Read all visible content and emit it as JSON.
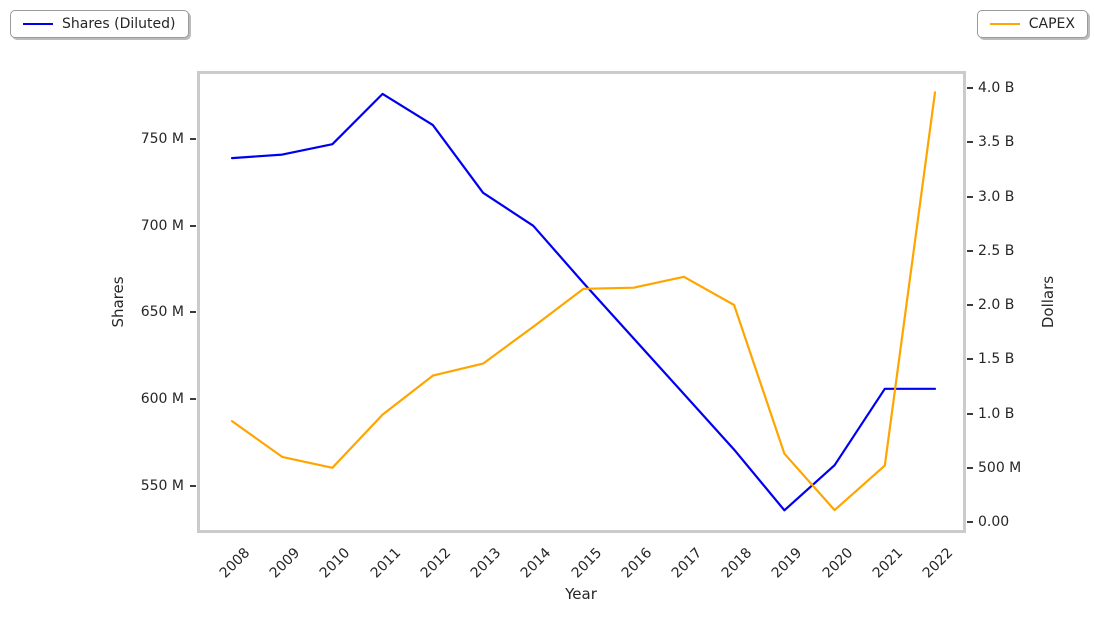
{
  "legend_left": {
    "label": "Shares (Diluted)"
  },
  "legend_right": {
    "label": "CAPEX"
  },
  "chart_data": {
    "type": "line",
    "title": "",
    "xlabel": "Year",
    "x_categories": [
      "2008",
      "2009",
      "2010",
      "2011",
      "2012",
      "2013",
      "2014",
      "2015",
      "2016",
      "2017",
      "2018",
      "2019",
      "2020",
      "2021",
      "2022"
    ],
    "y_left": {
      "label": "Shares",
      "unit": "millions of shares",
      "tick_labels": [
        "550 M",
        "600 M",
        "650 M",
        "700 M",
        "750 M"
      ],
      "tick_values": [
        550,
        600,
        650,
        700,
        750
      ],
      "axis_range": [
        522.9,
        789.2
      ]
    },
    "y_right": {
      "label": "Dollars",
      "unit": "billions of dollars",
      "tick_labels": [
        "0.00",
        "500 M",
        "1.0 B",
        "1.5 B",
        "2.0 B",
        "2.5 B",
        "3.0 B",
        "3.5 B",
        "4.0 B"
      ],
      "tick_values": [
        0,
        0.5,
        1.0,
        1.5,
        2.0,
        2.5,
        3.0,
        3.5,
        4.0
      ],
      "axis_range": [
        -0.101,
        4.157
      ]
    },
    "series": [
      {
        "name": "Shares (Diluted)",
        "axis": "left",
        "color": "#0000ee",
        "unit": "millions",
        "values": [
          739,
          741,
          747,
          776,
          758,
          719,
          700,
          667,
          635,
          603,
          571,
          536,
          562,
          606,
          606
        ]
      },
      {
        "name": "CAPEX",
        "axis": "right",
        "color": "#ffa500",
        "unit": "billions",
        "values": [
          0.93,
          0.6,
          0.5,
          0.99,
          1.35,
          1.46,
          1.8,
          2.15,
          2.16,
          2.26,
          2.0,
          0.63,
          0.11,
          0.52,
          3.96
        ]
      }
    ],
    "legend_position": "top-left and top-right, fancybox with shadow",
    "grid": false
  }
}
